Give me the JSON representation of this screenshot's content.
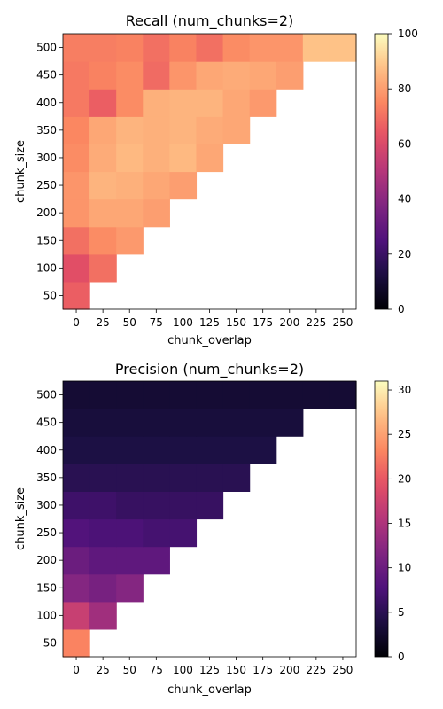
{
  "chart_data": [
    {
      "type": "heatmap",
      "title": "Recall (num_chunks=2)",
      "xlabel": "chunk_overlap",
      "ylabel": "chunk_size",
      "x": [
        0,
        25,
        50,
        75,
        100,
        125,
        150,
        175,
        200,
        225,
        250
      ],
      "y": [
        50,
        100,
        150,
        200,
        250,
        300,
        350,
        400,
        450,
        500
      ],
      "xticks": [
        "0",
        "25",
        "50",
        "75",
        "100",
        "125",
        "150",
        "175",
        "200",
        "225",
        "250"
      ],
      "yticks": [
        "50",
        "100",
        "150",
        "200",
        "250",
        "300",
        "350",
        "400",
        "450",
        "500"
      ],
      "colorbar": {
        "min": 0,
        "max": 100,
        "ticks": [
          "0",
          "20",
          "40",
          "60",
          "80",
          "100"
        ],
        "colormap": "magma"
      },
      "values": [
        [
          66,
          null,
          null,
          null,
          null,
          null,
          null,
          null,
          null,
          null,
          null
        ],
        [
          62,
          70,
          null,
          null,
          null,
          null,
          null,
          null,
          null,
          null,
          null
        ],
        [
          70,
          76,
          79,
          null,
          null,
          null,
          null,
          null,
          null,
          null,
          null
        ],
        [
          78,
          82,
          82,
          80,
          null,
          null,
          null,
          null,
          null,
          null,
          null
        ],
        [
          78,
          85,
          84,
          82,
          80,
          null,
          null,
          null,
          null,
          null,
          null
        ],
        [
          76,
          83,
          86,
          84,
          86,
          82,
          null,
          null,
          null,
          null,
          null
        ],
        [
          75,
          82,
          85,
          84,
          85,
          83,
          82,
          null,
          null,
          null,
          null
        ],
        [
          72,
          66,
          76,
          84,
          85,
          85,
          82,
          79,
          null,
          null,
          null
        ],
        [
          72,
          74,
          76,
          69,
          78,
          82,
          83,
          82,
          80,
          null,
          null
        ],
        [
          73,
          73,
          74,
          70,
          74,
          70,
          76,
          78,
          78,
          88,
          88
        ]
      ]
    },
    {
      "type": "heatmap",
      "title": "Precision (num_chunks=2)",
      "xlabel": "chunk_overlap",
      "ylabel": "chunk_size",
      "x": [
        0,
        25,
        50,
        75,
        100,
        125,
        150,
        175,
        200,
        225,
        250
      ],
      "y": [
        50,
        100,
        150,
        200,
        250,
        300,
        350,
        400,
        450,
        500
      ],
      "xticks": [
        "0",
        "25",
        "50",
        "75",
        "100",
        "125",
        "150",
        "175",
        "200",
        "225",
        "250"
      ],
      "yticks": [
        "50",
        "100",
        "150",
        "200",
        "250",
        "300",
        "350",
        "400",
        "450",
        "500"
      ],
      "colorbar": {
        "min": 0,
        "max": 31,
        "ticks": [
          "0",
          "5",
          "10",
          "15",
          "20",
          "25",
          "30"
        ],
        "colormap": "magma"
      },
      "values": [
        [
          23,
          null,
          null,
          null,
          null,
          null,
          null,
          null,
          null,
          null,
          null
        ],
        [
          17,
          14,
          null,
          null,
          null,
          null,
          null,
          null,
          null,
          null,
          null
        ],
        [
          12,
          11,
          12,
          null,
          null,
          null,
          null,
          null,
          null,
          null,
          null
        ],
        [
          10,
          9,
          9,
          9,
          null,
          null,
          null,
          null,
          null,
          null,
          null
        ],
        [
          8,
          7.5,
          7.5,
          7,
          7,
          null,
          null,
          null,
          null,
          null,
          null
        ],
        [
          6.5,
          6.5,
          6,
          6,
          6,
          6,
          null,
          null,
          null,
          null,
          null
        ],
        [
          5,
          5,
          5,
          5,
          5,
          5,
          5,
          null,
          null,
          null,
          null
        ],
        [
          4,
          4,
          4,
          4,
          4,
          4,
          4,
          4,
          null,
          null,
          null
        ],
        [
          3.5,
          3.5,
          3.5,
          3.5,
          3.5,
          3.5,
          3.5,
          3.5,
          3.5,
          null,
          null
        ],
        [
          3,
          3,
          3,
          3,
          3,
          3,
          3,
          3,
          3,
          3,
          3
        ]
      ]
    }
  ]
}
